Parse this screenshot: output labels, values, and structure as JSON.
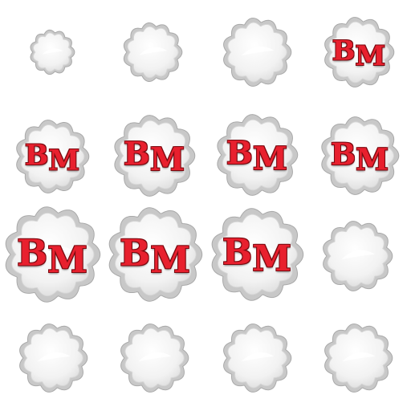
{
  "sprite_sheet": {
    "logo_text_b": "B",
    "logo_text_m": "M",
    "logo_color": "#e8202e",
    "cloud_fill": "#f2f2f2",
    "cloud_outline": "#c8c8c8",
    "frames": [
      {
        "shows_logo": false
      },
      {
        "shows_logo": false
      },
      {
        "shows_logo": false
      },
      {
        "shows_logo": true
      },
      {
        "shows_logo": true
      },
      {
        "shows_logo": true
      },
      {
        "shows_logo": true
      },
      {
        "shows_logo": true
      },
      {
        "shows_logo": true
      },
      {
        "shows_logo": true
      },
      {
        "shows_logo": true
      },
      {
        "shows_logo": false
      },
      {
        "shows_logo": false
      },
      {
        "shows_logo": false
      },
      {
        "shows_logo": false
      },
      {
        "shows_logo": false
      }
    ]
  }
}
